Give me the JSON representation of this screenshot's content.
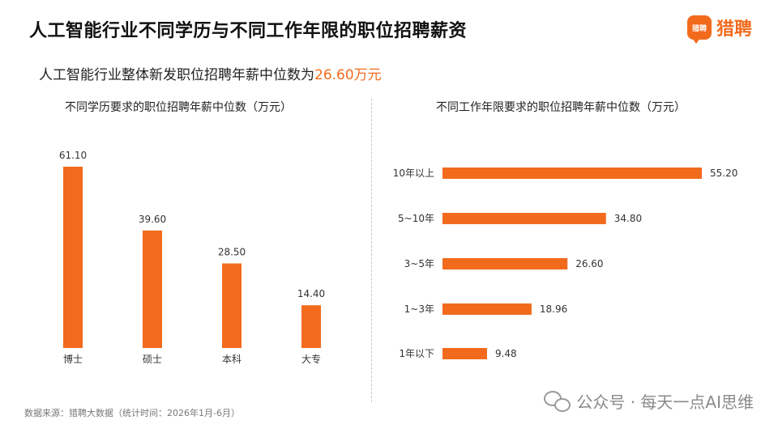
{
  "title": "人工智能行业不同学历与不同工作年限的职位招聘薪资",
  "logo": {
    "mark_text": "猎聘",
    "text": "猎聘"
  },
  "subtitle": {
    "prefix": "人工智能行业整体新发职位招聘年薪中位数为",
    "value": "26.60万元"
  },
  "colors": {
    "accent": "#F26B1D",
    "bar": "#F26B1D"
  },
  "chart_data": [
    {
      "type": "bar",
      "orientation": "vertical",
      "title": "不同学历要求的职位招聘年薪中位数（万元）",
      "categories": [
        "博士",
        "硕士",
        "本科",
        "大专"
      ],
      "values": [
        61.1,
        39.6,
        28.5,
        14.4
      ],
      "value_labels": [
        "61.10",
        "39.60",
        "28.50",
        "14.40"
      ],
      "ylim": [
        0,
        61.1
      ],
      "grid": false
    },
    {
      "type": "bar",
      "orientation": "horizontal",
      "title": "不同工作年限要求的职位招聘年薪中位数（万元）",
      "categories": [
        "10年以上",
        "5~10年",
        "3~5年",
        "1~3年",
        "1年以下"
      ],
      "values": [
        55.2,
        34.8,
        26.6,
        18.96,
        9.48
      ],
      "value_labels": [
        "55.20",
        "34.80",
        "26.60",
        "18.96",
        "9.48"
      ],
      "xlim": [
        0,
        55.2
      ],
      "grid": false
    }
  ],
  "footer": "数据来源：猎聘大数据（统计时间：2026年1月-6月）",
  "watermark": {
    "icon": "wechat-icon",
    "text": "公众号 · 每天一点AI思维"
  }
}
